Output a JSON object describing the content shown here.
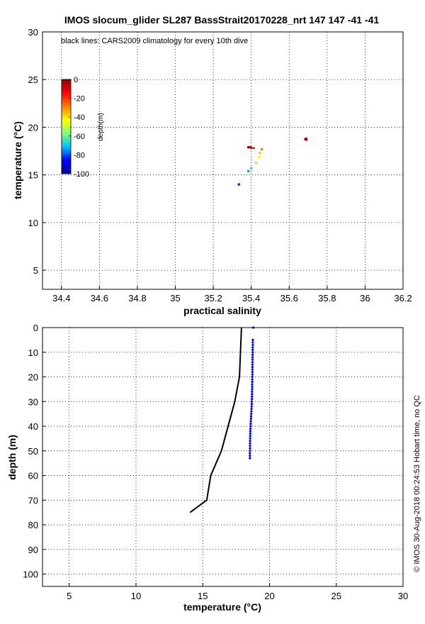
{
  "figure": {
    "title": "IMOS slocum_glider SL287 BassStrait20170228_nrt 147  147  -41  -41",
    "credit": "© IMOS 30-Aug-2018 00:24:53 Hobart time, no QC"
  },
  "colors": {
    "dot_blue": "#0000ff",
    "line_black": "#000000",
    "colormap": [
      "#00008f",
      "#0000ff",
      "#00bfff",
      "#7fff7f",
      "#ffff00",
      "#ff7f00",
      "#ff0000",
      "#8f0000"
    ]
  },
  "chart_data": [
    {
      "type": "scatter",
      "title": "IMOS slocum_glider SL287 BassStrait20170228_nrt 147  147  -41  -41",
      "annotation": "black lines: CARS2009 climatology for every 10th dive",
      "xlabel": "practical salinity",
      "ylabel": "temperature (°C)",
      "xlim": [
        34.3,
        36.2
      ],
      "ylim": [
        3,
        30
      ],
      "xticks": [
        "34.4",
        "34.6",
        "34.8",
        "35",
        "35.2",
        "35.4",
        "35.6",
        "35.8",
        "36",
        "36.2"
      ],
      "yticks": [
        "5",
        "10",
        "15",
        "20",
        "25",
        "30"
      ],
      "grid": "dotted",
      "colorbar": {
        "label": "depth(m)",
        "ticks": [
          "0",
          "-20",
          "-40",
          "-60",
          "-80",
          "-100"
        ],
        "range": [
          -100,
          0
        ]
      },
      "climatology_segments": [
        [
          [
            35.38,
            17.9
          ],
          [
            35.42,
            17.8
          ]
        ]
      ],
      "points": [
        {
          "salinity": 35.69,
          "temperature": 18.8,
          "depth": -1
        },
        {
          "salinity": 35.69,
          "temperature": 18.7,
          "depth": -3
        },
        {
          "salinity": 35.685,
          "temperature": 18.75,
          "depth": -6
        },
        {
          "salinity": 35.385,
          "temperature": 17.9,
          "depth": -2
        },
        {
          "salinity": 35.4,
          "temperature": 17.85,
          "depth": -6
        },
        {
          "salinity": 35.395,
          "temperature": 17.9,
          "depth": -10
        },
        {
          "salinity": 35.455,
          "temperature": 17.7,
          "depth": -28
        },
        {
          "salinity": 35.445,
          "temperature": 17.3,
          "depth": -36
        },
        {
          "salinity": 35.44,
          "temperature": 16.9,
          "depth": -45
        },
        {
          "salinity": 35.425,
          "temperature": 16.3,
          "depth": -55
        },
        {
          "salinity": 35.4,
          "temperature": 15.7,
          "depth": -68
        },
        {
          "salinity": 35.385,
          "temperature": 15.4,
          "depth": -74
        },
        {
          "salinity": 35.335,
          "temperature": 14.0,
          "depth": -82
        }
      ]
    },
    {
      "type": "scatter",
      "xlabel": "temperature (°C)",
      "ylabel": "depth (m)",
      "xlim": [
        3,
        30
      ],
      "ylim": [
        0,
        105
      ],
      "y_reversed": true,
      "xticks": [
        "5",
        "10",
        "15",
        "20",
        "25",
        "30"
      ],
      "yticks": [
        "0",
        "10",
        "20",
        "30",
        "40",
        "50",
        "60",
        "70",
        "80",
        "90",
        "100"
      ],
      "grid": "dotted",
      "climatology_profile": [
        {
          "temperature": 17.9,
          "depth": 0
        },
        {
          "temperature": 17.75,
          "depth": 20
        },
        {
          "temperature": 17.4,
          "depth": 30
        },
        {
          "temperature": 16.4,
          "depth": 50
        },
        {
          "temperature": 15.6,
          "depth": 60
        },
        {
          "temperature": 15.3,
          "depth": 70
        },
        {
          "temperature": 14.05,
          "depth": 75
        }
      ],
      "profile": [
        {
          "temperature": 18.78,
          "depth": 0
        },
        {
          "temperature": 18.75,
          "depth": 5
        },
        {
          "temperature": 18.75,
          "depth": 6
        },
        {
          "temperature": 18.75,
          "depth": 7
        },
        {
          "temperature": 18.74,
          "depth": 8
        },
        {
          "temperature": 18.74,
          "depth": 9
        },
        {
          "temperature": 18.74,
          "depth": 10
        },
        {
          "temperature": 18.74,
          "depth": 11
        },
        {
          "temperature": 18.73,
          "depth": 12
        },
        {
          "temperature": 18.73,
          "depth": 13
        },
        {
          "temperature": 18.73,
          "depth": 14
        },
        {
          "temperature": 18.73,
          "depth": 15
        },
        {
          "temperature": 18.72,
          "depth": 16
        },
        {
          "temperature": 18.72,
          "depth": 17
        },
        {
          "temperature": 18.72,
          "depth": 18
        },
        {
          "temperature": 18.72,
          "depth": 19
        },
        {
          "temperature": 18.71,
          "depth": 20
        },
        {
          "temperature": 18.71,
          "depth": 21
        },
        {
          "temperature": 18.71,
          "depth": 22
        },
        {
          "temperature": 18.7,
          "depth": 23
        },
        {
          "temperature": 18.7,
          "depth": 24
        },
        {
          "temperature": 18.7,
          "depth": 25
        },
        {
          "temperature": 18.69,
          "depth": 26
        },
        {
          "temperature": 18.69,
          "depth": 27
        },
        {
          "temperature": 18.68,
          "depth": 28
        },
        {
          "temperature": 18.68,
          "depth": 29
        },
        {
          "temperature": 18.67,
          "depth": 30
        },
        {
          "temperature": 18.67,
          "depth": 31
        },
        {
          "temperature": 18.66,
          "depth": 32
        },
        {
          "temperature": 18.65,
          "depth": 33
        },
        {
          "temperature": 18.64,
          "depth": 34
        },
        {
          "temperature": 18.63,
          "depth": 35
        },
        {
          "temperature": 18.62,
          "depth": 36
        },
        {
          "temperature": 18.61,
          "depth": 37
        },
        {
          "temperature": 18.6,
          "depth": 38
        },
        {
          "temperature": 18.59,
          "depth": 39
        },
        {
          "temperature": 18.58,
          "depth": 40
        },
        {
          "temperature": 18.57,
          "depth": 41
        },
        {
          "temperature": 18.56,
          "depth": 42
        },
        {
          "temperature": 18.56,
          "depth": 43
        },
        {
          "temperature": 18.55,
          "depth": 44
        },
        {
          "temperature": 18.55,
          "depth": 45
        },
        {
          "temperature": 18.54,
          "depth": 46
        },
        {
          "temperature": 18.54,
          "depth": 47
        },
        {
          "temperature": 18.54,
          "depth": 48
        },
        {
          "temperature": 18.54,
          "depth": 49
        },
        {
          "temperature": 18.53,
          "depth": 50
        },
        {
          "temperature": 18.53,
          "depth": 51
        },
        {
          "temperature": 18.53,
          "depth": 52
        },
        {
          "temperature": 18.53,
          "depth": 53
        }
      ]
    }
  ]
}
